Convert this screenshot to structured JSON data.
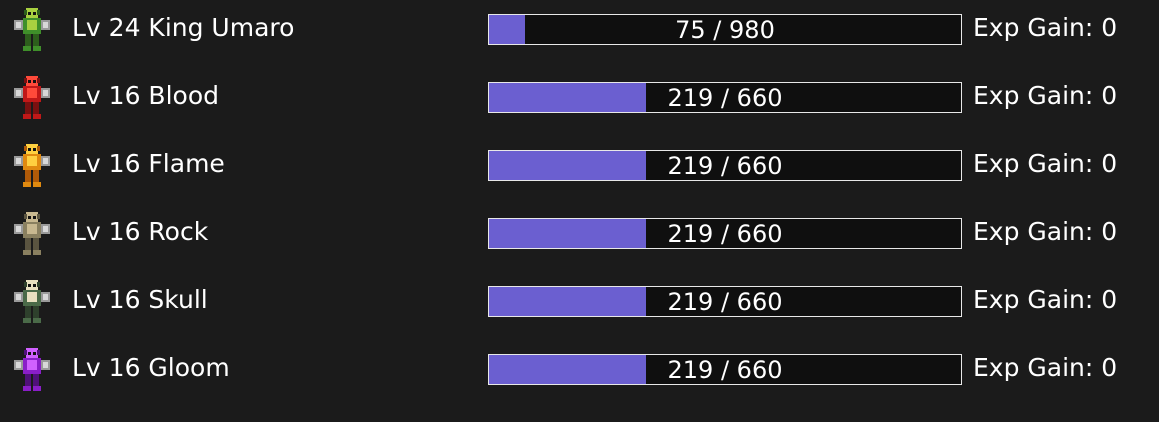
{
  "party": [
    {
      "label": "Lv 24 King Umaro",
      "exp": 75,
      "exp_max": 980,
      "exp_label": "75 / 980",
      "gain": "Exp Gain: 0"
    },
    {
      "label": "Lv 16 Blood",
      "exp": 219,
      "exp_max": 660,
      "exp_label": "219 / 660",
      "gain": "Exp Gain: 0"
    },
    {
      "label": "Lv 16 Flame",
      "exp": 219,
      "exp_max": 660,
      "exp_label": "219 / 660",
      "gain": "Exp Gain: 0"
    },
    {
      "label": "Lv 16 Rock",
      "exp": 219,
      "exp_max": 660,
      "exp_label": "219 / 660",
      "gain": "Exp Gain: 0"
    },
    {
      "label": "Lv 16 Skull",
      "exp": 219,
      "exp_max": 660,
      "exp_label": "219 / 660",
      "gain": "Exp Gain: 0"
    },
    {
      "label": "Lv 16 Gloom",
      "exp": 219,
      "exp_max": 660,
      "exp_label": "219 / 660",
      "gain": "Exp Gain: 0"
    }
  ]
}
